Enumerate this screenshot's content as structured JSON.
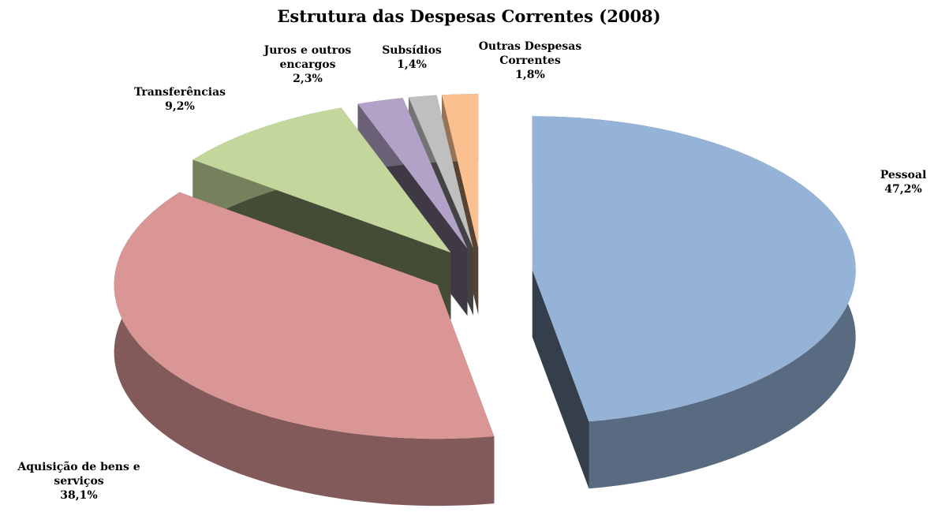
{
  "chart_data": {
    "type": "pie3d",
    "title": "Estrutura das Despesas Correntes (2008)",
    "categories": [
      "Pessoal",
      "Aquisição de bens e serviços",
      "Transferências",
      "Juros e outros encargos",
      "Subsídios",
      "Outras Despesas Correntes"
    ],
    "values": [
      47.2,
      38.1,
      9.2,
      2.3,
      1.4,
      1.8
    ],
    "value_labels": [
      "47,2%",
      "38,1%",
      "9,2%",
      "2,3%",
      "1,4%",
      "1,8%"
    ],
    "colors": [
      "#95b3d7",
      "#d99694",
      "#c3d69b",
      "#b3a2c7",
      "#bfbfbf",
      "#fac090"
    ]
  }
}
